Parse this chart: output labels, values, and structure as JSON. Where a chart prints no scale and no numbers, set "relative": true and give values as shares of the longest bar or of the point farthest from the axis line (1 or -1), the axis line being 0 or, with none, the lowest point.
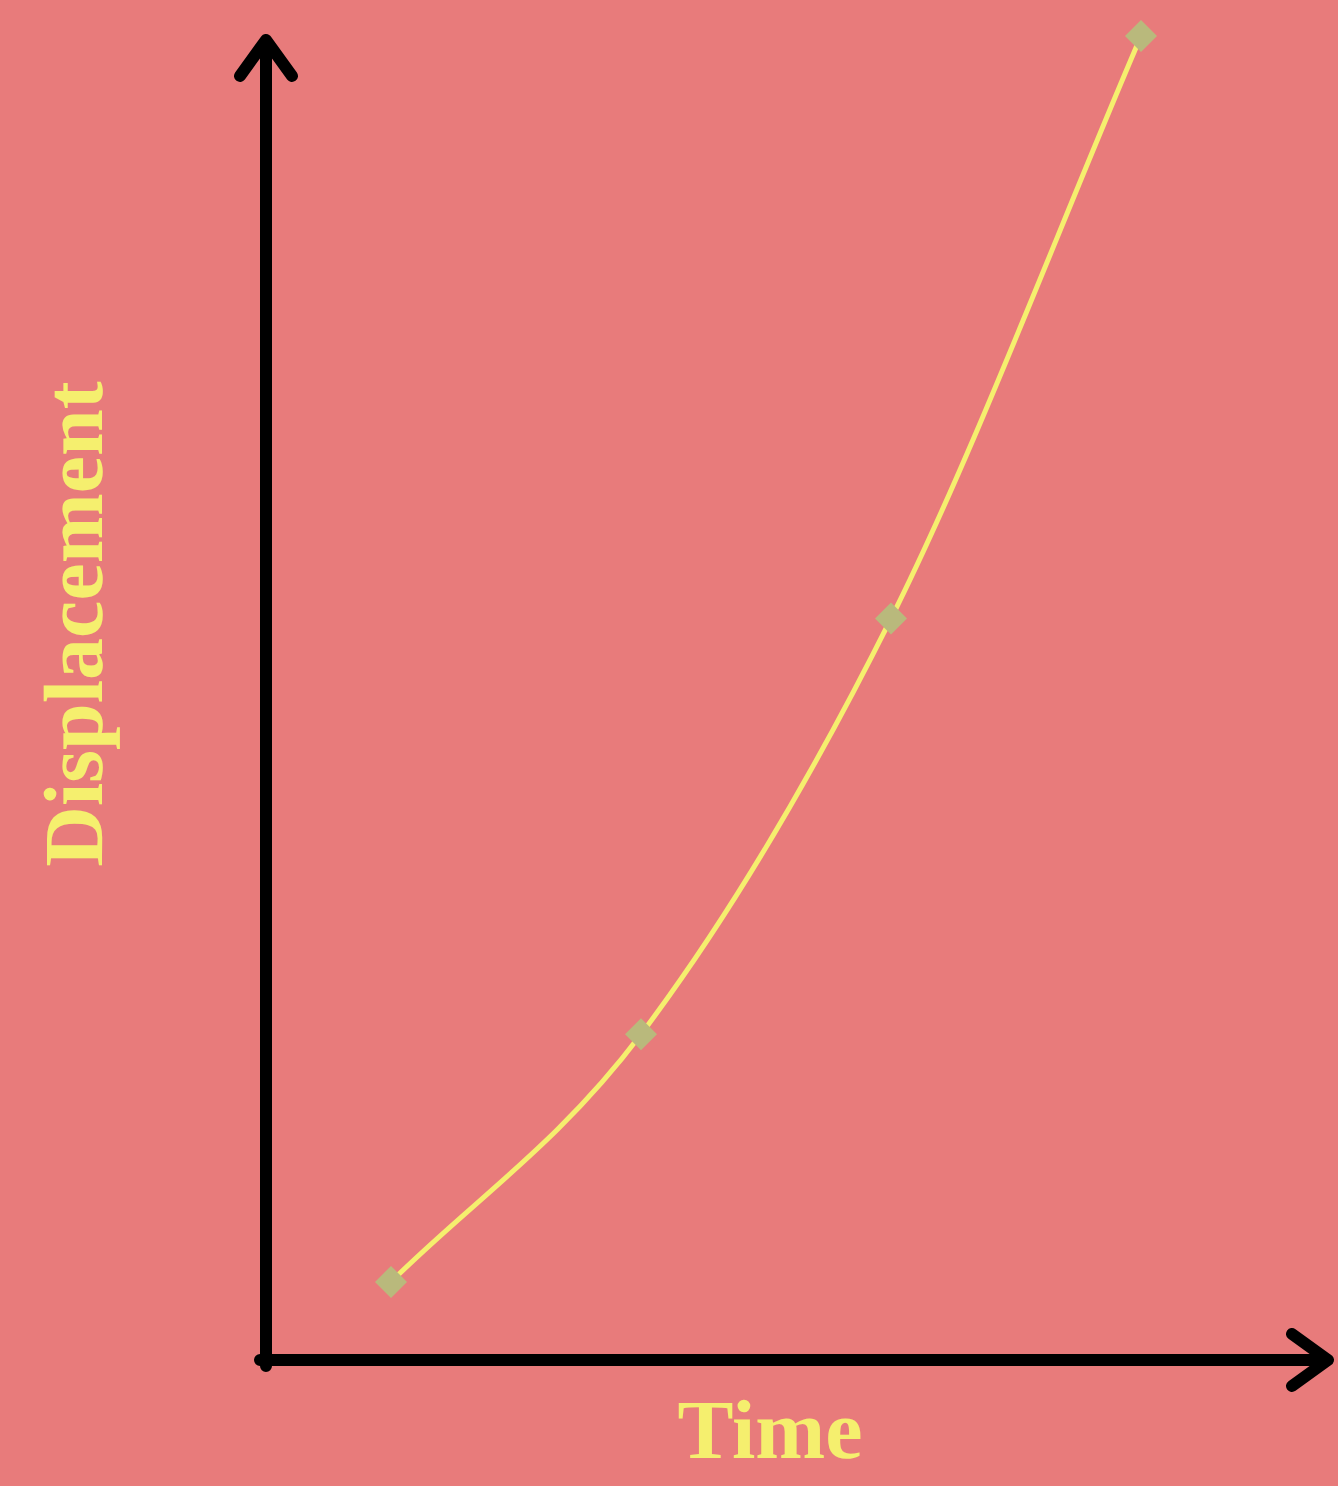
{
  "chart_data": {
    "type": "line",
    "xlabel": "Time",
    "ylabel": "Displacement",
    "relative": true,
    "categories": [
      null,
      null,
      null,
      null
    ],
    "series": [
      {
        "color": "#f5ef6e",
        "colors": [
          "#b9b97c",
          "#b9b97c",
          "#b9b97c",
          "#b9b97c"
        ],
        "values": [
          0.059,
          0.246,
          0.56,
          1
        ]
      }
    ],
    "marker": "diamond",
    "line_style": "solid",
    "legend": false
  }
}
